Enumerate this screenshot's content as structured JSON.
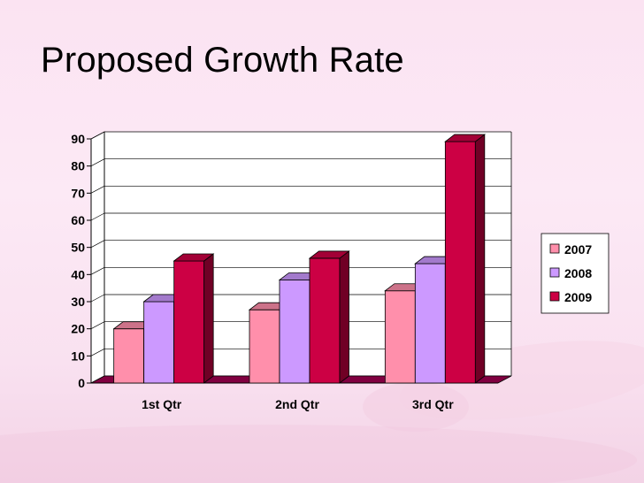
{
  "slide": {
    "title": "Proposed Growth Rate"
  },
  "chart_data": {
    "type": "bar",
    "style": "3d-clustered-column",
    "categories": [
      "1st Qtr",
      "2nd Qtr",
      "3rd Qtr"
    ],
    "series": [
      {
        "name": "2007",
        "values": [
          20,
          27,
          34
        ],
        "color": "#ff8fab"
      },
      {
        "name": "2008",
        "values": [
          30,
          38,
          44
        ],
        "color": "#cc99ff"
      },
      {
        "name": "2009",
        "values": [
          45,
          46,
          89
        ],
        "color": "#cc0044"
      }
    ],
    "ylim": [
      0,
      90
    ],
    "yticks": [
      "0",
      "10",
      "20",
      "30",
      "40",
      "50",
      "60",
      "70",
      "80",
      "90"
    ],
    "grid": true,
    "legend": "right",
    "title": "",
    "xlabel": "",
    "ylabel": ""
  }
}
